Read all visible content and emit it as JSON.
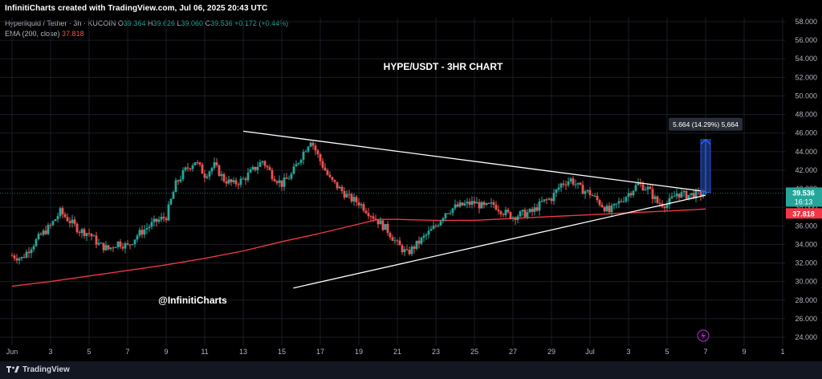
{
  "header": {
    "created_by": "InfinitiCharts created with TradingView.com, Jul 06, 2025 20:43 UTC"
  },
  "legend": {
    "symbol_line": "Hyperliquid / Tether · 3h · KUCOIN",
    "o_label": "O",
    "o_value": "39.364",
    "h_label": "H",
    "h_value": "39.626",
    "l_label": "L",
    "l_value": "39.060",
    "c_label": "C",
    "c_value": "39.536",
    "change": "+0.172 (+0.44%)",
    "ema_label": "EMA (200, close)",
    "ema_value": "37.818"
  },
  "footer": {
    "brand": "TradingView"
  },
  "colors": {
    "up": "#26a69a",
    "down": "#ef5350",
    "ema": "#f23645",
    "trendline": "#ffffff",
    "measure_fill": "#1e3a8a",
    "measure_stroke": "#2962ff",
    "price_tag": "#26a69a",
    "ema_tag": "#f23645"
  },
  "chart_data": {
    "type": "candlestick",
    "title": "HYPE/USDT - 3HR CHART",
    "watermark": "@InfinitiCharts",
    "xlabel": "",
    "ylabel": "",
    "ylim": [
      24,
      58
    ],
    "y_ticks": [
      "24.000",
      "26.000",
      "28.000",
      "30.000",
      "32.000",
      "34.000",
      "36.000",
      "38.000",
      "40.000",
      "42.000",
      "44.000",
      "46.000",
      "48.000",
      "50.000",
      "52.000",
      "54.000",
      "56.000",
      "58.000"
    ],
    "x_ticks": [
      {
        "label": "Jun",
        "day": 1
      },
      {
        "label": "3",
        "day": 3
      },
      {
        "label": "5",
        "day": 5
      },
      {
        "label": "7",
        "day": 7
      },
      {
        "label": "9",
        "day": 9
      },
      {
        "label": "11",
        "day": 11
      },
      {
        "label": "13",
        "day": 13
      },
      {
        "label": "15",
        "day": 15
      },
      {
        "label": "17",
        "day": 17
      },
      {
        "label": "19",
        "day": 19
      },
      {
        "label": "21",
        "day": 21
      },
      {
        "label": "23",
        "day": 23
      },
      {
        "label": "25",
        "day": 25
      },
      {
        "label": "27",
        "day": 27
      },
      {
        "label": "29",
        "day": 29
      },
      {
        "label": "Jul",
        "day": 31
      },
      {
        "label": "3",
        "day": 33
      },
      {
        "label": "5",
        "day": 35
      },
      {
        "label": "7",
        "day": 37
      },
      {
        "label": "9",
        "day": 39
      },
      {
        "label": "1",
        "day": 41
      }
    ],
    "price_path": [
      [
        1.0,
        32.8
      ],
      [
        1.5,
        32.5
      ],
      [
        2.0,
        33.8
      ],
      [
        2.5,
        35.0
      ],
      [
        3.0,
        36.0
      ],
      [
        3.5,
        37.5
      ],
      [
        4.0,
        36.5
      ],
      [
        4.5,
        35.5
      ],
      [
        5.0,
        35.2
      ],
      [
        5.5,
        34.0
      ],
      [
        6.0,
        33.5
      ],
      [
        6.5,
        34.2
      ],
      [
        7.0,
        33.8
      ],
      [
        7.5,
        35.0
      ],
      [
        8.0,
        35.8
      ],
      [
        8.5,
        36.5
      ],
      [
        9.0,
        37.0
      ],
      [
        9.5,
        40.5
      ],
      [
        10.0,
        42.0
      ],
      [
        10.5,
        43.0
      ],
      [
        11.0,
        41.5
      ],
      [
        11.5,
        42.5
      ],
      [
        12.0,
        41.0
      ],
      [
        12.5,
        40.5
      ],
      [
        13.0,
        41.0
      ],
      [
        13.5,
        42.0
      ],
      [
        14.0,
        43.0
      ],
      [
        14.5,
        41.5
      ],
      [
        15.0,
        40.5
      ],
      [
        15.5,
        41.5
      ],
      [
        16.0,
        43.5
      ],
      [
        16.5,
        45.3
      ],
      [
        17.0,
        43.0
      ],
      [
        17.5,
        41.0
      ],
      [
        18.0,
        40.0
      ],
      [
        18.5,
        39.0
      ],
      [
        19.0,
        38.5
      ],
      [
        19.5,
        37.5
      ],
      [
        20.0,
        36.5
      ],
      [
        20.5,
        35.5
      ],
      [
        21.0,
        34.0
      ],
      [
        21.5,
        33.0
      ],
      [
        22.0,
        34.0
      ],
      [
        22.5,
        35.0
      ],
      [
        23.0,
        36.0
      ],
      [
        23.5,
        37.5
      ],
      [
        24.0,
        38.0
      ],
      [
        24.5,
        38.3
      ],
      [
        25.0,
        38.5
      ],
      [
        25.5,
        38.0
      ],
      [
        26.0,
        38.3
      ],
      [
        26.5,
        37.5
      ],
      [
        27.0,
        37.0
      ],
      [
        27.5,
        37.3
      ],
      [
        28.0,
        37.5
      ],
      [
        28.5,
        38.5
      ],
      [
        29.0,
        39.0
      ],
      [
        29.5,
        40.5
      ],
      [
        30.0,
        41.0
      ],
      [
        30.5,
        40.0
      ],
      [
        31.0,
        39.5
      ],
      [
        31.5,
        38.5
      ],
      [
        32.0,
        37.5
      ],
      [
        32.5,
        38.5
      ],
      [
        33.0,
        39.5
      ],
      [
        33.5,
        40.5
      ],
      [
        34.0,
        40.0
      ],
      [
        34.5,
        38.5
      ],
      [
        35.0,
        38.3
      ],
      [
        35.5,
        39.5
      ],
      [
        36.0,
        39.3
      ],
      [
        36.5,
        39.4
      ],
      [
        37.0,
        39.536
      ]
    ],
    "ema": [
      [
        1.0,
        29.5
      ],
      [
        3.0,
        30.0
      ],
      [
        5.0,
        30.6
      ],
      [
        7.0,
        31.2
      ],
      [
        9.0,
        31.8
      ],
      [
        11.0,
        32.5
      ],
      [
        13.0,
        33.3
      ],
      [
        15.0,
        34.3
      ],
      [
        17.0,
        35.2
      ],
      [
        19.0,
        36.2
      ],
      [
        20.0,
        36.7
      ],
      [
        21.0,
        36.7
      ],
      [
        23.0,
        36.6
      ],
      [
        25.0,
        36.6
      ],
      [
        27.0,
        36.8
      ],
      [
        29.0,
        37.0
      ],
      [
        31.0,
        37.2
      ],
      [
        33.0,
        37.4
      ],
      [
        35.0,
        37.6
      ],
      [
        37.0,
        37.818
      ]
    ],
    "upper_trendline": [
      [
        13.0,
        46.2
      ],
      [
        37.0,
        39.7
      ]
    ],
    "lower_trendline": [
      [
        15.6,
        29.3
      ],
      [
        37.0,
        39.3
      ]
    ],
    "measure": {
      "day": 37.0,
      "from": 39.6,
      "to": 45.3,
      "label": "5.664 (14.29%) 5,664"
    },
    "last_price": "39.536",
    "countdown": "16:13",
    "ema_last": "37.818"
  }
}
